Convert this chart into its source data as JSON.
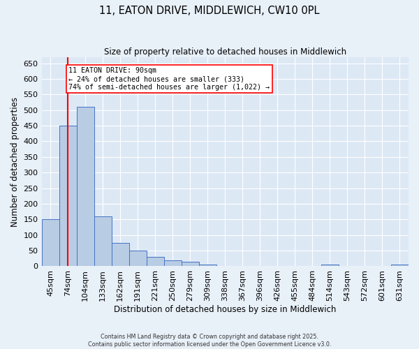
{
  "title_line1": "11, EATON DRIVE, MIDDLEWICH, CW10 0PL",
  "title_line2": "Size of property relative to detached houses in Middlewich",
  "xlabel": "Distribution of detached houses by size in Middlewich",
  "ylabel": "Number of detached properties",
  "bar_color": "#b8cce4",
  "bar_edge_color": "#4472c4",
  "categories": [
    "45sqm",
    "74sqm",
    "104sqm",
    "133sqm",
    "162sqm",
    "191sqm",
    "221sqm",
    "250sqm",
    "279sqm",
    "309sqm",
    "338sqm",
    "367sqm",
    "396sqm",
    "426sqm",
    "455sqm",
    "484sqm",
    "514sqm",
    "543sqm",
    "572sqm",
    "601sqm",
    "631sqm"
  ],
  "values": [
    150,
    450,
    510,
    160,
    75,
    50,
    30,
    20,
    15,
    5,
    0,
    0,
    0,
    0,
    0,
    0,
    5,
    0,
    0,
    0,
    5
  ],
  "ylim": [
    0,
    670
  ],
  "yticks": [
    0,
    50,
    100,
    150,
    200,
    250,
    300,
    350,
    400,
    450,
    500,
    550,
    600,
    650
  ],
  "red_line_x": 1.0,
  "annotation_text_line1": "11 EATON DRIVE: 90sqm",
  "annotation_text_line2": "← 24% of detached houses are smaller (333)",
  "annotation_text_line3": "74% of semi-detached houses are larger (1,022) →",
  "background_color": "#dde8f5",
  "grid_color": "#ffffff",
  "fig_bg_color": "#e8f0f8",
  "footer_line1": "Contains HM Land Registry data © Crown copyright and database right 2025.",
  "footer_line2": "Contains public sector information licensed under the Open Government Licence v3.0."
}
